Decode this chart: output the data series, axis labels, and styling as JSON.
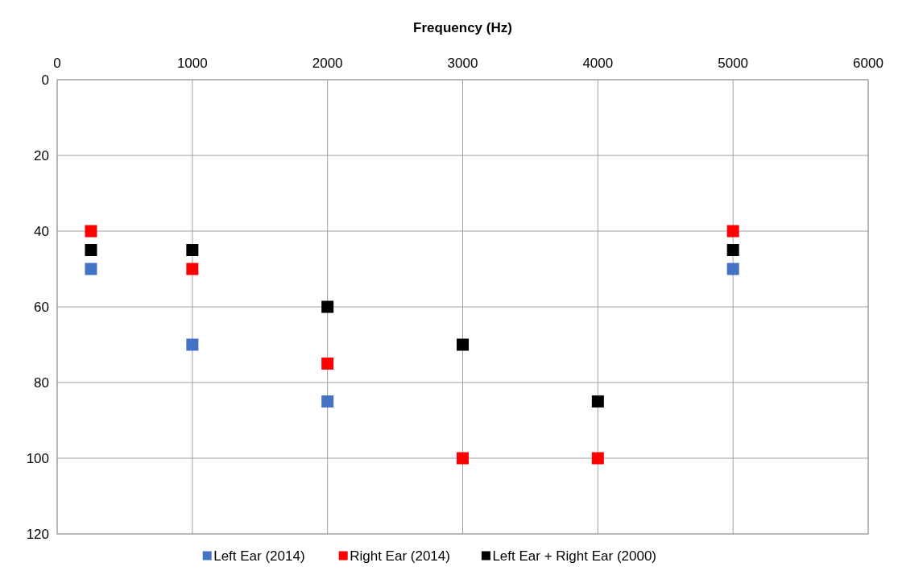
{
  "chart_data": {
    "type": "scatter",
    "xlabel": "Frequency (Hz)",
    "x": [
      250,
      1000,
      2000,
      3000,
      4000,
      5000
    ],
    "series": [
      {
        "name": "Left Ear (2014)",
        "color": "#4472c4",
        "values": [
          50,
          70,
          85,
          null,
          null,
          50
        ]
      },
      {
        "name": "Right Ear (2014)",
        "color": "#ff0000",
        "values": [
          40,
          50,
          75,
          100,
          100,
          40
        ]
      },
      {
        "name": "Left Ear + Right Ear (2000)",
        "color": "#000000",
        "values": [
          45,
          45,
          60,
          70,
          85,
          45
        ]
      }
    ],
    "xlim": [
      0,
      6000
    ],
    "xticks": [
      0,
      1000,
      2000,
      3000,
      4000,
      5000,
      6000
    ],
    "ylim": [
      120,
      0
    ],
    "yticks": [
      0,
      20,
      40,
      60,
      80,
      100,
      120
    ],
    "grid": true,
    "legend": "bottom",
    "marker": "square"
  }
}
